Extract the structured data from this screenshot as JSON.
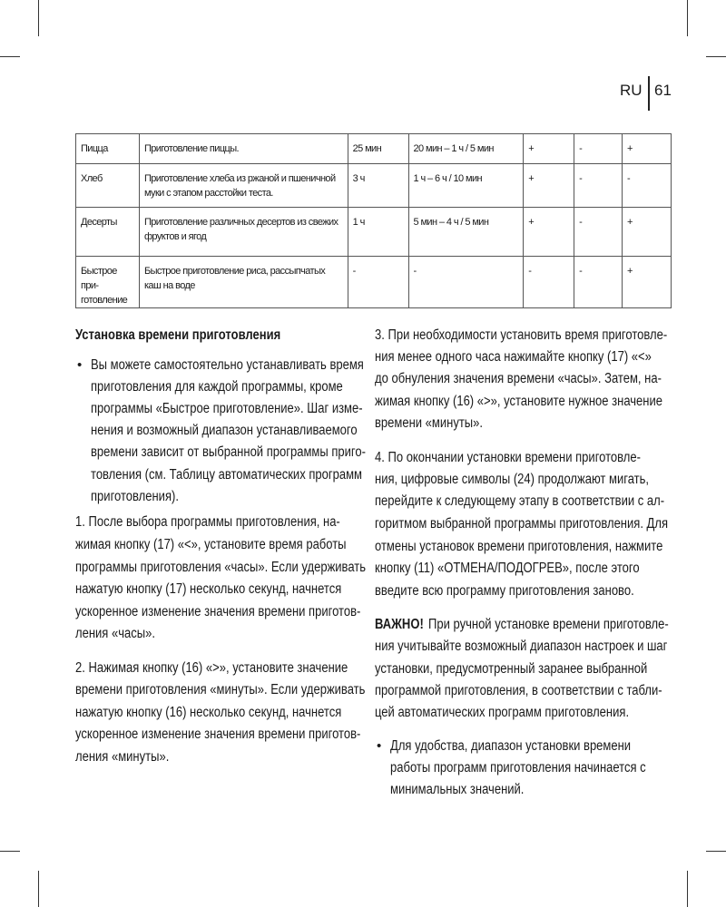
{
  "header": {
    "lang": "RU",
    "page": "61"
  },
  "table": {
    "rows": [
      [
        "Пицца",
        "Приготовление пиццы.",
        "25 мин",
        "20 мин – 1 ч / 5 мин",
        "+",
        "-",
        "+"
      ],
      [
        "Хлеб",
        "Приготовление хлеба из ржаной и пшеничной муки с этапом расстойки теста.",
        "3 ч",
        "1 ч – 6 ч / 10 мин",
        "+",
        "-",
        "-"
      ],
      [
        "Десерты",
        "Приготовление различных десертов из свежих фруктов и ягод",
        "1 ч",
        "5 мин – 4 ч / 5 мин",
        "+",
        "-",
        "+"
      ],
      [
        "Быстрое при-готовление",
        "Быстрое приготовление риса, рассыпчатых каш на воде",
        "-",
        "-",
        "-",
        "-",
        "+"
      ]
    ]
  },
  "left": {
    "heading": "Установка времени приготовления",
    "bullet": [
      "Вы можете самостоятельно устанавливать время",
      "приготовления для каждой программы, кроме",
      "программы «Быстрое приготовление». Шаг изме-",
      "нения и возможный диапазон устанавливаемого",
      "времени зависит от выбранной программы приго-",
      "товления (см. Таблицу автоматических программ",
      "приготовления)."
    ],
    "step1": [
      "1. После выбора программы приготовления, на-",
      "жимая кнопку (17) «<», установите время работы",
      "программы приготовления «часы». Если удерживать",
      "нажатую кнопку (17) несколько секунд, начнется",
      "ускоренное изменение значения времени приготов-",
      "ления «часы»."
    ],
    "step2": [
      "2. Нажимая кнопку (16) «>», установите значение",
      "времени приготовления «минуты». Если удерживать",
      "нажатую кнопку (16) несколько секунд, начнется",
      "ускоренное изменение значения времени приготов-",
      "ления «минуты»."
    ]
  },
  "right": {
    "step3": [
      "3. При необходимости установить время приготовле-",
      "ния менее одного часа нажимайте кнопку (17) «<»",
      "до обнуления значения времени «часы». Затем, на-",
      "жимая кнопку (16) «>», установите нужное значение",
      "времени «минуты»."
    ],
    "step4": [
      "4. По окончании установки времени приготовле-",
      "ния, цифровые символы (24) продолжают мигать,",
      "перейдите к следующему этапу в соответствии с ал-",
      "горитмом выбранной программы приготовления. Для",
      "отмены установок времени приготовления, нажмите",
      "кнопку (11) «ОТМЕНА/ПОДОГРЕВ», после этого",
      "введите всю программу приготовления заново."
    ],
    "important_label": "ВАЖНО!",
    "important": [
      " При ручной установке времени приготовле-",
      "ния учитывайте возможный диапазон настроек и шаг",
      "установки, предусмотренный заранее выбранной",
      "программой приготовления, в соответствии с табли-",
      "цей автоматических программ приготовления."
    ],
    "bullet": [
      "Для удобства, диапазон установки времени",
      "работы программ приготовления начинается с",
      "минимальных значений."
    ]
  }
}
